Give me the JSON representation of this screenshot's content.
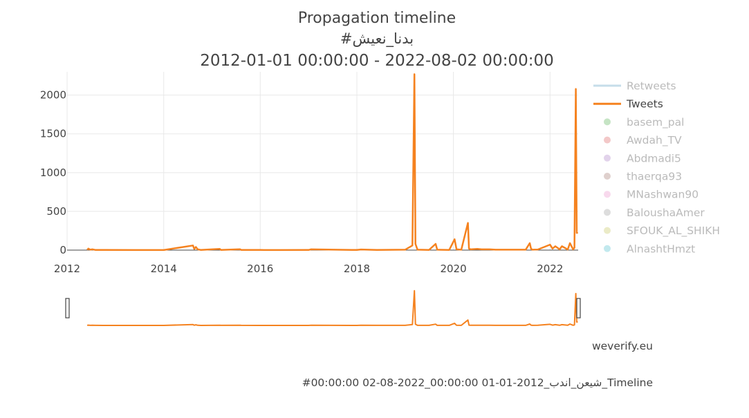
{
  "chart_data": {
    "type": "line",
    "title": "Propagation timeline",
    "subtitle": "#بدنا_نعيش",
    "date_range": "2012-01-01 00:00:00 - 2022-08-02 00:00:00",
    "xlim": [
      "2012-01-01",
      "2022-08-02"
    ],
    "ylim": [
      0,
      2300
    ],
    "x_ticks": [
      "2012",
      "2014",
      "2016",
      "2018",
      "2020",
      "2022"
    ],
    "y_ticks": [
      "0",
      "500",
      "1000",
      "1500",
      "2000"
    ],
    "grid": true,
    "legend_position": "right",
    "colors": {
      "tweets": "#f5821f",
      "retweets": "#8fbcd4"
    },
    "series": [
      {
        "name": "Retweets",
        "enabled": false,
        "x": [],
        "y": []
      },
      {
        "name": "Tweets",
        "enabled": true,
        "x": [
          "2012-06-01",
          "2012-06-10",
          "2012-06-25",
          "2012-07-10",
          "2012-08-01",
          "2012-10-01",
          "2013-06-01",
          "2014-01-01",
          "2014-08-10",
          "2014-08-20",
          "2014-09-01",
          "2014-09-15",
          "2014-10-10",
          "2015-03-01",
          "2015-03-10",
          "2015-08-01",
          "2015-08-10",
          "2016-01-01",
          "2016-06-01",
          "2017-01-01",
          "2017-01-20",
          "2018-01-01",
          "2018-02-01",
          "2018-06-01",
          "2019-01-01",
          "2019-02-25",
          "2019-03-12",
          "2019-03-20",
          "2019-04-05",
          "2019-07-01",
          "2019-08-20",
          "2019-09-01",
          "2019-12-01",
          "2020-01-10",
          "2020-01-25",
          "2020-03-01",
          "2020-04-20",
          "2020-04-28",
          "2020-05-10",
          "2020-07-01",
          "2020-08-01",
          "2020-10-01",
          "2020-11-15",
          "2021-04-01",
          "2021-07-01",
          "2021-08-01",
          "2021-08-10",
          "2021-08-20",
          "2021-10-01",
          "2022-01-01",
          "2022-01-20",
          "2022-02-10",
          "2022-03-15",
          "2022-04-01",
          "2022-05-15",
          "2022-06-01",
          "2022-06-25",
          "2022-07-05",
          "2022-07-15",
          "2022-07-22",
          "2022-07-30"
        ],
        "y": [
          3,
          20,
          5,
          10,
          3,
          2,
          1,
          1,
          60,
          15,
          40,
          10,
          2,
          15,
          3,
          12,
          3,
          2,
          1,
          2,
          10,
          2,
          8,
          3,
          5,
          60,
          2270,
          80,
          5,
          3,
          80,
          5,
          3,
          140,
          10,
          5,
          350,
          20,
          10,
          15,
          10,
          10,
          5,
          5,
          5,
          90,
          20,
          5,
          8,
          70,
          20,
          50,
          10,
          50,
          8,
          90,
          10,
          30,
          2080,
          220,
          230
        ]
      }
    ]
  },
  "legend": [
    {
      "label": "Retweets",
      "type": "line",
      "enabled": false,
      "color": "#8fbcd4"
    },
    {
      "label": "Tweets",
      "type": "line",
      "enabled": true,
      "color": "#f5821f"
    },
    {
      "label": "basem_pal",
      "type": "marker",
      "enabled": false,
      "color": "#8bc98a"
    },
    {
      "label": "Awdah_TV",
      "type": "marker",
      "enabled": false,
      "color": "#e89191"
    },
    {
      "label": "Abdmadi5",
      "type": "marker",
      "enabled": false,
      "color": "#c5a8d8"
    },
    {
      "label": "thaerqa93",
      "type": "marker",
      "enabled": false,
      "color": "#bfa29c"
    },
    {
      "label": "MNashwan90",
      "type": "marker",
      "enabled": false,
      "color": "#f2b4dc"
    },
    {
      "label": "BalоushaAmer",
      "type": "marker",
      "enabled": false,
      "color": "#bcbcbc"
    },
    {
      "label": "SFOUK_AL_SHIKH",
      "type": "marker",
      "enabled": false,
      "color": "#d8d890"
    },
    {
      "label": "AlnashtHmzt",
      "type": "marker",
      "enabled": false,
      "color": "#86d4de"
    }
  ],
  "watermark": "weverify.eu",
  "footer_filename": "#00:00:00 02-08-2022_00:00:00 01-01-2012_بدنا_نعيش_Timeline"
}
